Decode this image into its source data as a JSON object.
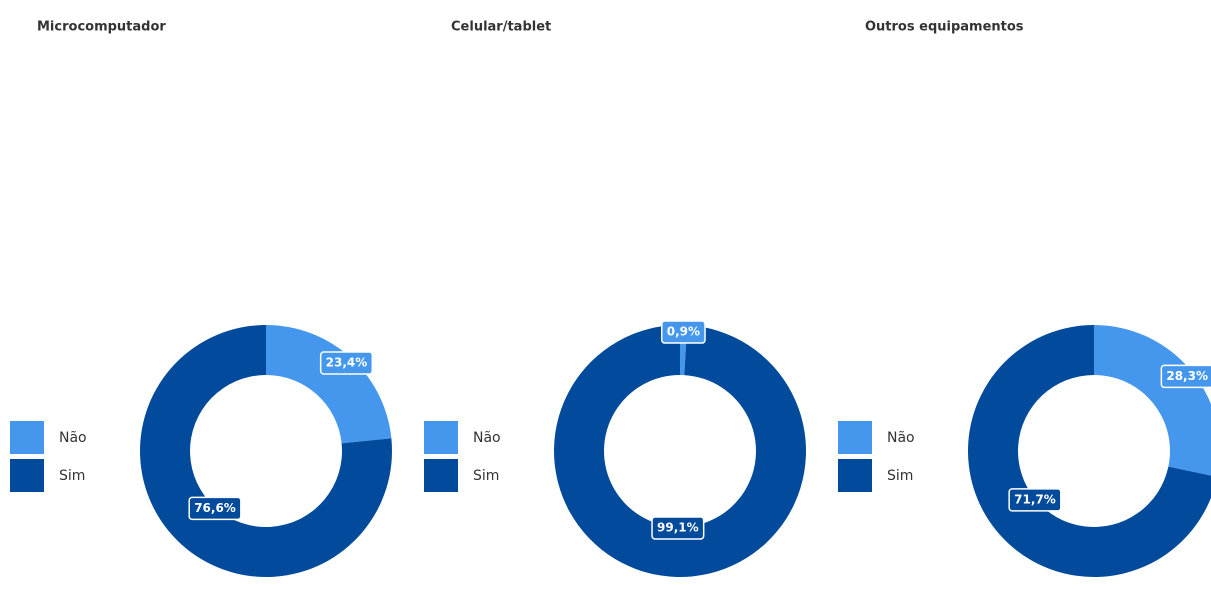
{
  "chart_data": [
    {
      "type": "pie",
      "donut": true,
      "title": "Microcomputador",
      "categories": [
        "Não",
        "Sim"
      ],
      "values": [
        23.4,
        76.6
      ],
      "value_labels": [
        "23,4%",
        "76,6%"
      ],
      "colors": [
        "#4497ec",
        "#014a9c"
      ]
    },
    {
      "type": "pie",
      "donut": true,
      "title": "Celular/tablet",
      "categories": [
        "Não",
        "Sim"
      ],
      "values": [
        0.9,
        99.1
      ],
      "value_labels": [
        "0,9%",
        "99,1%"
      ],
      "colors": [
        "#4497ec",
        "#014a9c"
      ]
    },
    {
      "type": "pie",
      "donut": true,
      "title": "Outros equipamentos",
      "categories": [
        "Não",
        "Sim"
      ],
      "values": [
        28.3,
        71.7
      ],
      "value_labels": [
        "28,3%",
        "71,7%"
      ],
      "colors": [
        "#4497ec",
        "#014a9c"
      ]
    }
  ]
}
